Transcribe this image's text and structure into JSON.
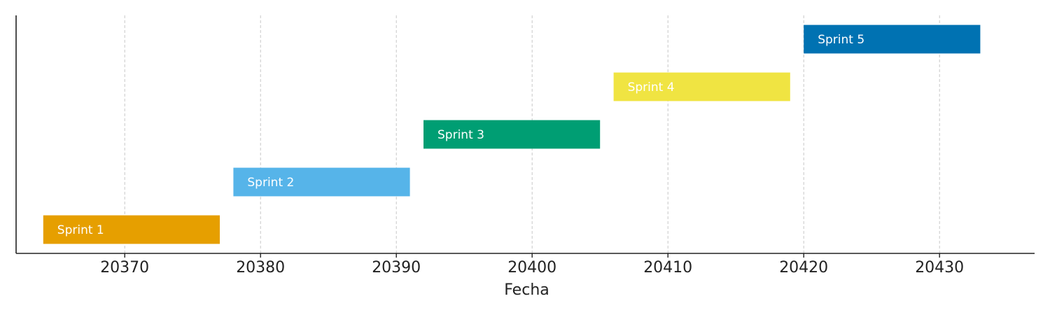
{
  "chart_data": {
    "type": "bar",
    "orientation": "horizontal-gantt",
    "xlabel": "Fecha",
    "ylabel": "",
    "title": "",
    "xlim": [
      20362,
      20437
    ],
    "xticks": [
      20370,
      20380,
      20390,
      20400,
      20410,
      20420,
      20430
    ],
    "grid": "vertical-dashed",
    "legend": "none",
    "tasks": [
      {
        "label": "Sprint 1",
        "start": 20364,
        "end": 20377,
        "color": "#E69F00"
      },
      {
        "label": "Sprint 2",
        "start": 20378,
        "end": 20391,
        "color": "#56B4E9"
      },
      {
        "label": "Sprint 3",
        "start": 20392,
        "end": 20405,
        "color": "#009E73"
      },
      {
        "label": "Sprint 4",
        "start": 20406,
        "end": 20419,
        "color": "#F0E442"
      },
      {
        "label": "Sprint 5",
        "start": 20420,
        "end": 20433,
        "color": "#0072B2"
      }
    ]
  }
}
